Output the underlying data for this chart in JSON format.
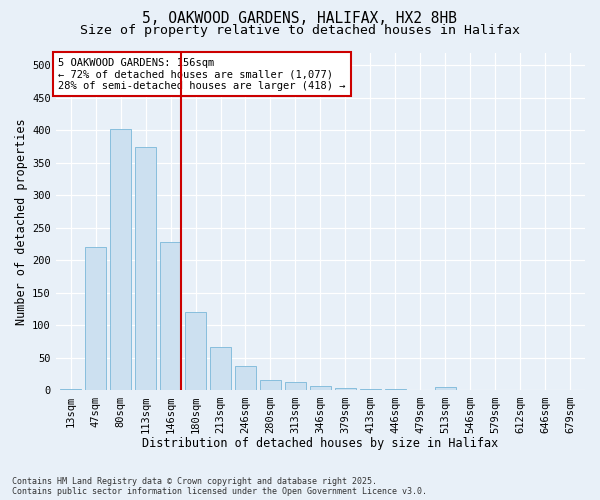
{
  "title_line1": "5, OAKWOOD GARDENS, HALIFAX, HX2 8HB",
  "title_line2": "Size of property relative to detached houses in Halifax",
  "xlabel": "Distribution of detached houses by size in Halifax",
  "ylabel": "Number of detached properties",
  "categories": [
    "13sqm",
    "47sqm",
    "80sqm",
    "113sqm",
    "146sqm",
    "180sqm",
    "213sqm",
    "246sqm",
    "280sqm",
    "313sqm",
    "346sqm",
    "379sqm",
    "413sqm",
    "446sqm",
    "479sqm",
    "513sqm",
    "546sqm",
    "579sqm",
    "612sqm",
    "646sqm",
    "679sqm"
  ],
  "values": [
    2,
    220,
    402,
    375,
    228,
    120,
    67,
    38,
    16,
    13,
    7,
    4,
    3,
    2,
    1,
    6,
    1,
    1,
    1,
    1,
    1
  ],
  "bar_color": "#cce0f0",
  "bar_edge_color": "#7ab8d9",
  "vline_x_idx": 4,
  "vline_color": "#cc0000",
  "annotation_text": "5 OAKWOOD GARDENS: 156sqm\n← 72% of detached houses are smaller (1,077)\n28% of semi-detached houses are larger (418) →",
  "annotation_box_color": "#ffffff",
  "annotation_box_edge_color": "#cc0000",
  "ylim": [
    0,
    520
  ],
  "yticks": [
    0,
    50,
    100,
    150,
    200,
    250,
    300,
    350,
    400,
    450,
    500
  ],
  "background_color": "#e8f0f8",
  "grid_color": "#ffffff",
  "footer": "Contains HM Land Registry data © Crown copyright and database right 2025.\nContains public sector information licensed under the Open Government Licence v3.0.",
  "title_fontsize": 10.5,
  "subtitle_fontsize": 9.5,
  "axis_label_fontsize": 8.5,
  "tick_fontsize": 7.5,
  "annotation_fontsize": 7.5,
  "footer_fontsize": 6.0
}
